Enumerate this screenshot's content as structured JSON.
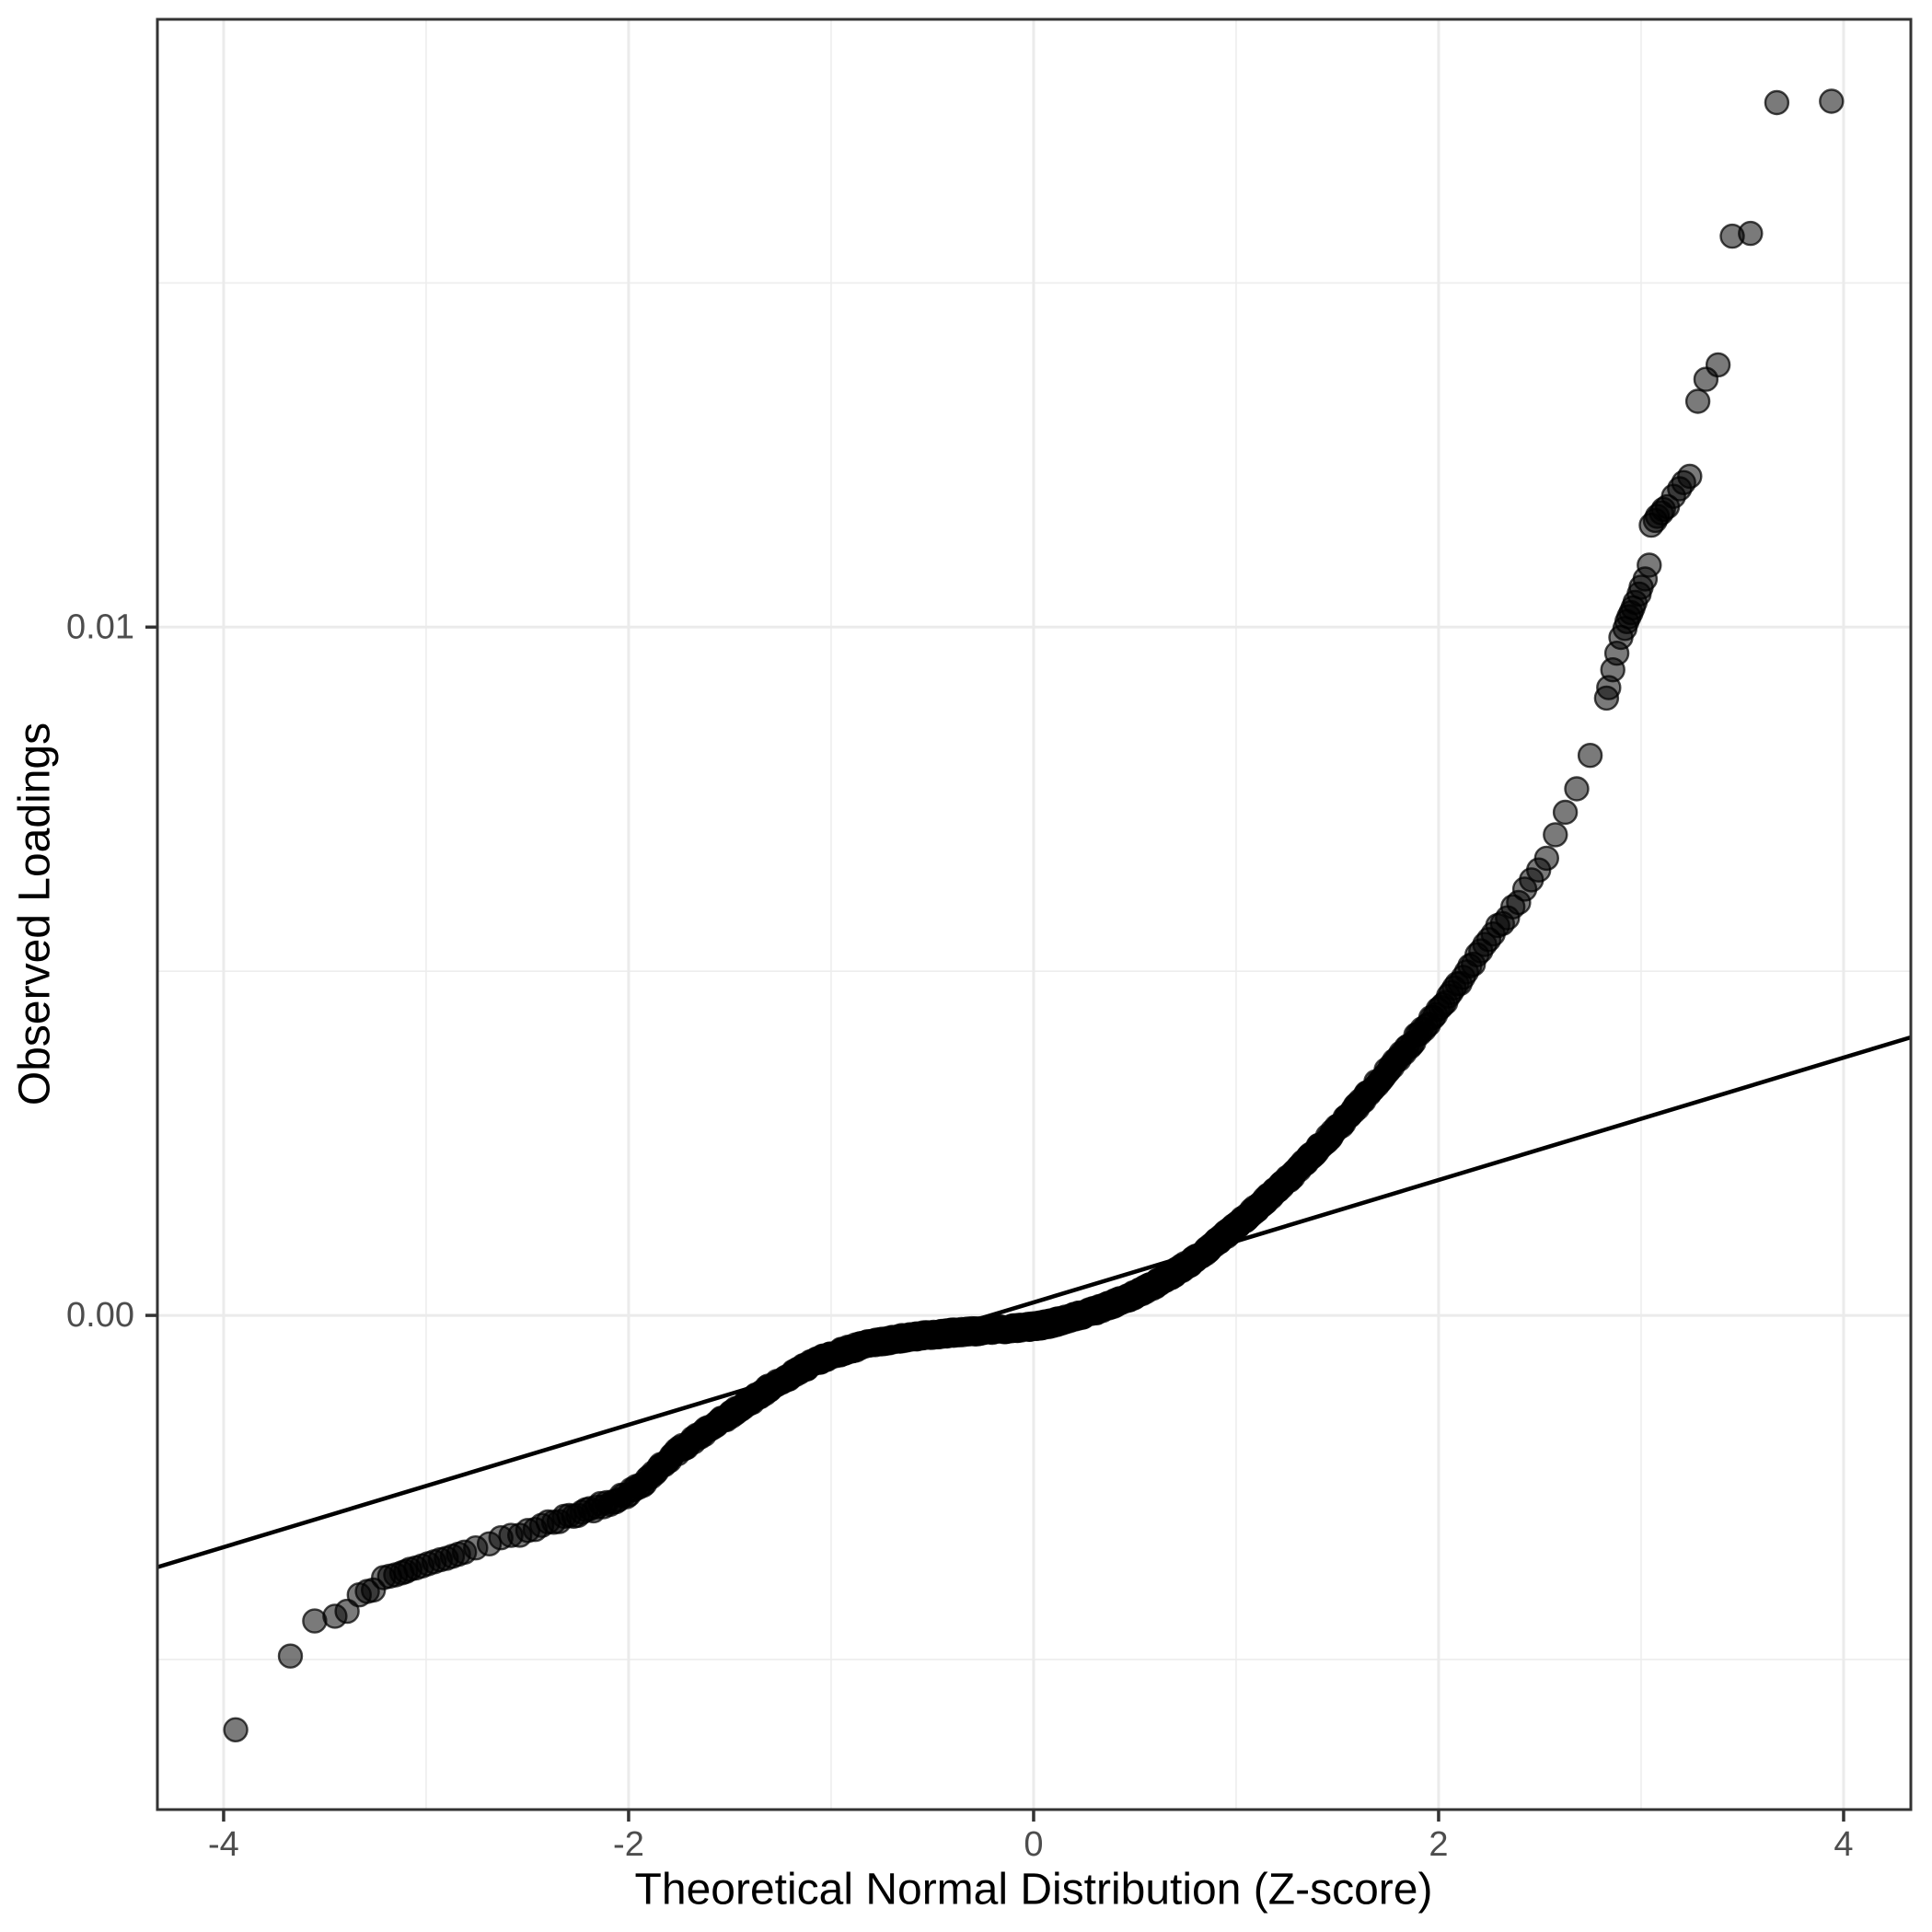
{
  "chart_data": {
    "type": "scatter",
    "subtype": "qq-plot",
    "title": "",
    "xlabel": "Theoretical Normal Distribution (Z-score)",
    "ylabel": "Observed Loadings",
    "legend": "none",
    "grid": true,
    "x_ticks": [
      {
        "value": -4,
        "label": "-4"
      },
      {
        "value": -2,
        "label": "-2"
      },
      {
        "value": 0,
        "label": "0"
      },
      {
        "value": 2,
        "label": "2"
      },
      {
        "value": 4,
        "label": "4"
      }
    ],
    "y_ticks": [
      {
        "value": 0.0,
        "label": "0.00"
      },
      {
        "value": 0.01,
        "label": "0.01"
      }
    ],
    "x_minor": [
      -3,
      -1,
      1,
      3
    ],
    "y_minor": [
      -0.005,
      0.005,
      0.015
    ],
    "x_range": [
      -4.327,
      4.332
    ],
    "y_range": [
      -0.00718,
      0.01883
    ],
    "reference_line": {
      "intercept": 0.000189,
      "slope": 0.000889
    },
    "curve_anchors": [
      [
        -3.06,
        -0.00368
      ],
      [
        -2.9,
        -0.00355
      ],
      [
        -2.75,
        -0.00338
      ],
      [
        -2.5,
        -0.00313
      ],
      [
        -2.25,
        -0.00288
      ],
      [
        -2.0,
        -0.00258
      ],
      [
        -1.75,
        -0.00196
      ],
      [
        -1.5,
        -0.00145
      ],
      [
        -1.25,
        -0.00096
      ],
      [
        -1.0,
        -0.00058
      ],
      [
        -0.75,
        -0.00038
      ],
      [
        -0.5,
        -0.00028
      ],
      [
        -0.25,
        -0.00022
      ],
      [
        0,
        -0.00016
      ],
      [
        0.25,
        2e-05
      ],
      [
        0.5,
        0.0003
      ],
      [
        0.75,
        0.00072
      ],
      [
        1.0,
        0.0013
      ],
      [
        1.25,
        0.00196
      ],
      [
        1.5,
        0.00272
      ],
      [
        1.75,
        0.00356
      ],
      [
        2.0,
        0.00444
      ],
      [
        2.25,
        0.00546
      ],
      [
        2.5,
        0.0065
      ],
      [
        2.65,
        0.00745
      ],
      [
        2.8,
        0.00862
      ],
      [
        2.885,
        0.0096
      ]
    ],
    "lower_tail_points": [
      [
        -3.94,
        -0.00602
      ],
      [
        -3.67,
        -0.00495
      ],
      [
        -3.55,
        -0.00444
      ],
      [
        -3.45,
        -0.00437
      ],
      [
        -3.39,
        -0.0043
      ],
      [
        -3.33,
        -0.00406
      ],
      [
        -3.29,
        -0.00401
      ],
      [
        -3.26,
        -0.00399
      ],
      [
        -3.21,
        -0.00381
      ],
      [
        -3.18,
        -0.00379
      ],
      [
        -3.15,
        -0.00377
      ],
      [
        -3.12,
        -0.00374
      ],
      [
        -3.1,
        -0.00372
      ],
      [
        -3.08,
        -0.00369
      ],
      [
        -3.05,
        -0.00367
      ],
      [
        -3.02,
        -0.00364
      ],
      [
        -2.99,
        -0.00361
      ],
      [
        -2.96,
        -0.00358
      ],
      [
        -2.93,
        -0.00355
      ],
      [
        -2.9,
        -0.00353
      ],
      [
        -2.87,
        -0.0035
      ],
      [
        -2.84,
        -0.00347
      ],
      [
        -2.81,
        -0.00344
      ]
    ],
    "upper_tail_points": [
      [
        2.84,
        0.00912
      ],
      [
        2.86,
        0.00938
      ],
      [
        2.88,
        0.00962
      ],
      [
        2.9,
        0.00985
      ],
      [
        2.92,
        0.00998
      ],
      [
        2.93,
        0.01008
      ],
      [
        2.94,
        0.01015
      ],
      [
        2.95,
        0.01021
      ],
      [
        2.96,
        0.01028
      ],
      [
        2.97,
        0.01036
      ],
      [
        2.99,
        0.01048
      ],
      [
        3.0,
        0.01058
      ],
      [
        3.02,
        0.0107
      ],
      [
        3.04,
        0.0109
      ],
      [
        3.05,
        0.01148
      ],
      [
        3.07,
        0.01155
      ],
      [
        3.08,
        0.01161
      ],
      [
        3.1,
        0.01166
      ],
      [
        3.11,
        0.01171
      ],
      [
        3.13,
        0.01175
      ],
      [
        3.16,
        0.0119
      ],
      [
        3.19,
        0.01201
      ],
      [
        3.21,
        0.0121
      ],
      [
        3.24,
        0.01219
      ],
      [
        3.28,
        0.01328
      ],
      [
        3.32,
        0.0136
      ],
      [
        3.38,
        0.01381
      ],
      [
        3.45,
        0.01568
      ],
      [
        3.54,
        0.01572
      ],
      [
        3.67,
        0.01762
      ],
      [
        3.94,
        0.01764
      ]
    ],
    "dense_band": {
      "n": 1500,
      "p_lo": 0.0026,
      "p_hi": 0.998,
      "jitter": 4e-05,
      "seed": 42
    },
    "style": {
      "background": "#ffffff",
      "panel_border": "#333333",
      "grid_major": "#ebebeb",
      "grid_minor": "#ededed",
      "tick_color": "#333333",
      "tick_label_color": "#4d4d4d",
      "title_color": "#000000",
      "ref_line_color": "#000000",
      "point_fill": "#000000",
      "point_fill_opacity": 0.52,
      "point_stroke": "#000000",
      "point_stroke_opacity": 0.72,
      "point_radius": 12.5,
      "point_stroke_width": 2.4,
      "ref_line_width": 4.5,
      "grid_major_width": 3,
      "grid_minor_width": 1.6,
      "panel_border_width": 3,
      "tick_width": 3.5,
      "tick_length": 13
    }
  }
}
